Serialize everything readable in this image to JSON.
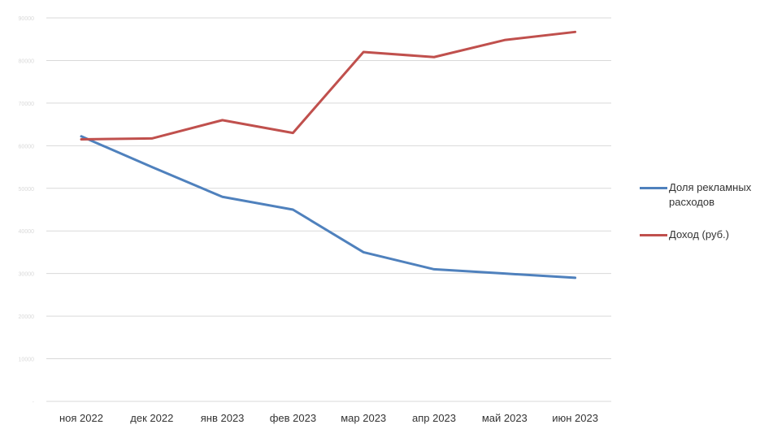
{
  "chart_data": {
    "type": "line",
    "categories": [
      "ноя 2022",
      "дек 2022",
      "янв 2023",
      "фев 2023",
      "мар 2023",
      "апр 2023",
      "май 2023",
      "июн 2023"
    ],
    "ylim": [
      0,
      9
    ],
    "y_ticks": [
      "-",
      "10000",
      "20000",
      "30000",
      "40000",
      "50000",
      "60000",
      "70000",
      "80000",
      "90000"
    ],
    "grid": true,
    "legend_position": "right",
    "series": [
      {
        "name": "Доля рекламных расходов",
        "color": "#4f81bd",
        "values": [
          6.22,
          5.5,
          4.8,
          4.5,
          3.5,
          3.1,
          3.0,
          2.9
        ]
      },
      {
        "name": "Доход (руб.)",
        "color": "#c0504d",
        "values": [
          6.15,
          6.17,
          6.6,
          6.3,
          8.2,
          8.08,
          8.48,
          8.67
        ]
      }
    ]
  }
}
